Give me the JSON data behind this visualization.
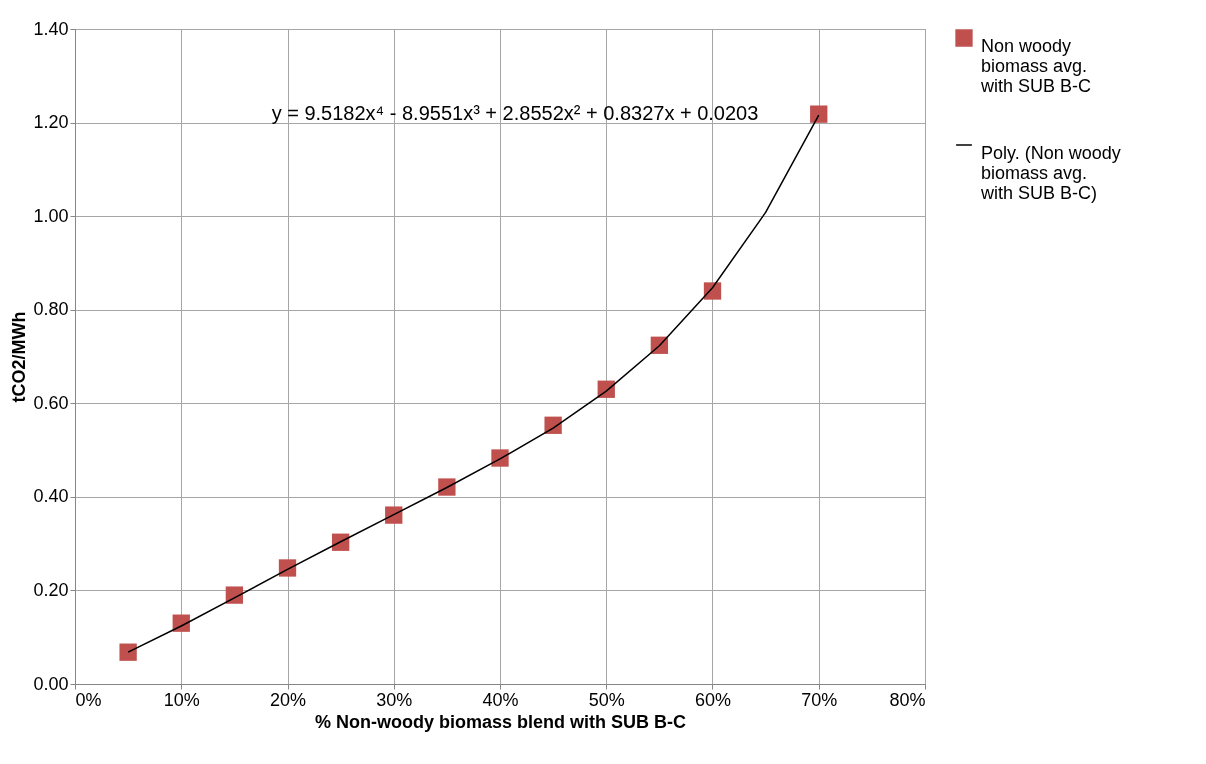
{
  "chart_data": {
    "type": "scatter",
    "xlabel": "% Non-woody biomass blend with SUB B-C",
    "ylabel": "tCO2/MWh",
    "x": [
      0.05,
      0.1,
      0.15,
      0.2,
      0.25,
      0.3,
      0.35,
      0.4,
      0.45,
      0.5,
      0.55,
      0.6,
      0.7
    ],
    "series": [
      {
        "name": "Non woody biomass avg. with SUB B-C",
        "color": "#c0504d",
        "marker": "square",
        "values": [
          0.068,
          0.13,
          0.19,
          0.248,
          0.303,
          0.361,
          0.421,
          0.483,
          0.553,
          0.63,
          0.724,
          0.84,
          1.218
        ]
      },
      {
        "name": "Poly. (Non woody biomass avg. with SUB B-C)",
        "type": "line",
        "color": "#000000",
        "x": [
          0.05,
          0.1,
          0.15,
          0.2,
          0.25,
          0.3,
          0.35,
          0.4,
          0.45,
          0.5,
          0.55,
          0.6,
          0.65,
          0.7
        ],
        "values": [
          0.068,
          0.124,
          0.184,
          0.245,
          0.304,
          0.362,
          0.42,
          0.481,
          0.547,
          0.626,
          0.723,
          0.847,
          1.008,
          1.216
        ]
      }
    ],
    "xlim": [
      0,
      0.8
    ],
    "xticks": [
      {
        "value": 0,
        "label": "0%"
      },
      {
        "value": 0.1,
        "label": "10%"
      },
      {
        "value": 0.2,
        "label": "20%"
      },
      {
        "value": 0.3,
        "label": "30%"
      },
      {
        "value": 0.4,
        "label": "40%"
      },
      {
        "value": 0.5,
        "label": "50%"
      },
      {
        "value": 0.6,
        "label": "60%"
      },
      {
        "value": 0.7,
        "label": "70%"
      },
      {
        "value": 0.8,
        "label": "80%"
      }
    ],
    "ylim": [
      0,
      1.4
    ],
    "yticks": [
      {
        "value": 0,
        "label": "0.00"
      },
      {
        "value": 0.2,
        "label": "0.20"
      },
      {
        "value": 0.4,
        "label": "0.40"
      },
      {
        "value": 0.6,
        "label": "0.60"
      },
      {
        "value": 0.8,
        "label": "0.80"
      },
      {
        "value": 1.0,
        "label": "1.00"
      },
      {
        "value": 1.2,
        "label": "1.20"
      },
      {
        "value": 1.4,
        "label": "1.40"
      }
    ],
    "annotations": [
      "y = 9.5182x⁴ - 8.9551x³ + 2.8552x² + 0.8327x + 0.0203"
    ],
    "grid": true,
    "legend": "right"
  }
}
